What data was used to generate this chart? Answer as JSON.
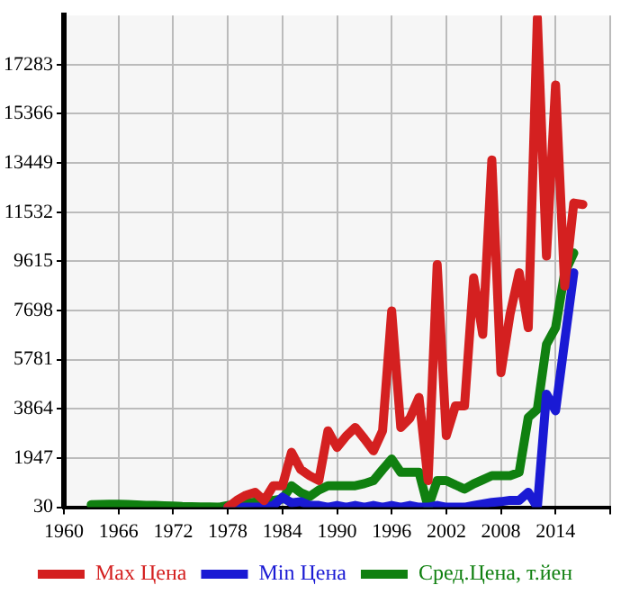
{
  "chart_data": {
    "type": "line",
    "x": [
      1963,
      1964,
      1965,
      1966,
      1967,
      1968,
      1969,
      1970,
      1971,
      1972,
      1973,
      1974,
      1975,
      1976,
      1977,
      1978,
      1979,
      1980,
      1981,
      1982,
      1983,
      1984,
      1985,
      1986,
      1987,
      1988,
      1989,
      1990,
      1991,
      1992,
      1993,
      1994,
      1995,
      1996,
      1997,
      1998,
      1999,
      2000,
      2001,
      2002,
      2003,
      2004,
      2005,
      2006,
      2007,
      2008,
      2009,
      2010,
      2011,
      2012,
      2013,
      2014,
      2015,
      2016,
      2017
    ],
    "series": [
      {
        "name": "Max Цена",
        "color": "#d42020",
        "values": [
          null,
          null,
          null,
          null,
          null,
          null,
          null,
          null,
          null,
          null,
          null,
          null,
          null,
          null,
          null,
          30,
          300,
          500,
          610,
          290,
          870,
          870,
          2170,
          1500,
          1260,
          1070,
          3010,
          2360,
          2800,
          3140,
          2700,
          2230,
          3010,
          7680,
          3140,
          3500,
          4310,
          1070,
          9490,
          2820,
          3980,
          3980,
          8970,
          6770,
          13570,
          5280,
          7550,
          9170,
          7030,
          19100,
          9820,
          16490,
          8650,
          11890,
          11830
        ]
      },
      {
        "name": "Min Цена",
        "color": "#1a1ad4",
        "values": [
          null,
          null,
          null,
          null,
          null,
          null,
          null,
          null,
          null,
          null,
          null,
          null,
          null,
          null,
          null,
          30,
          30,
          30,
          30,
          30,
          100,
          420,
          200,
          250,
          100,
          100,
          30,
          100,
          30,
          100,
          30,
          100,
          30,
          100,
          30,
          100,
          30,
          30,
          100,
          30,
          30,
          30,
          100,
          160,
          220,
          250,
          300,
          300,
          610,
          30,
          4440,
          3790,
          6500,
          9170,
          null
        ]
      },
      {
        "name": "Сред.Цена, т.йен",
        "color": "#108010",
        "values": [
          130,
          140,
          150,
          150,
          140,
          120,
          100,
          100,
          90,
          80,
          60,
          50,
          40,
          40,
          30,
          100,
          150,
          200,
          230,
          250,
          300,
          350,
          870,
          600,
          450,
          700,
          870,
          870,
          870,
          870,
          950,
          1070,
          1500,
          1910,
          1390,
          1390,
          1390,
          30,
          1070,
          1070,
          900,
          740,
          940,
          1100,
          1260,
          1260,
          1260,
          1390,
          3530,
          3850,
          6380,
          7030,
          9170,
          9940,
          null
        ]
      }
    ],
    "xlim": [
      1960,
      2020
    ],
    "xticks": [
      1960,
      1966,
      1972,
      1978,
      1984,
      1990,
      1996,
      2002,
      2008,
      2014,
      {
        "value": 2020,
        "label": null
      }
    ],
    "ylim": [
      30,
      19200
    ],
    "yticks": [
      30,
      1947,
      3864,
      5781,
      7698,
      9615,
      11532,
      13449,
      15366,
      17283
    ],
    "grid": true,
    "legend": "bottom",
    "marker": "none",
    "line_style": "solid"
  }
}
